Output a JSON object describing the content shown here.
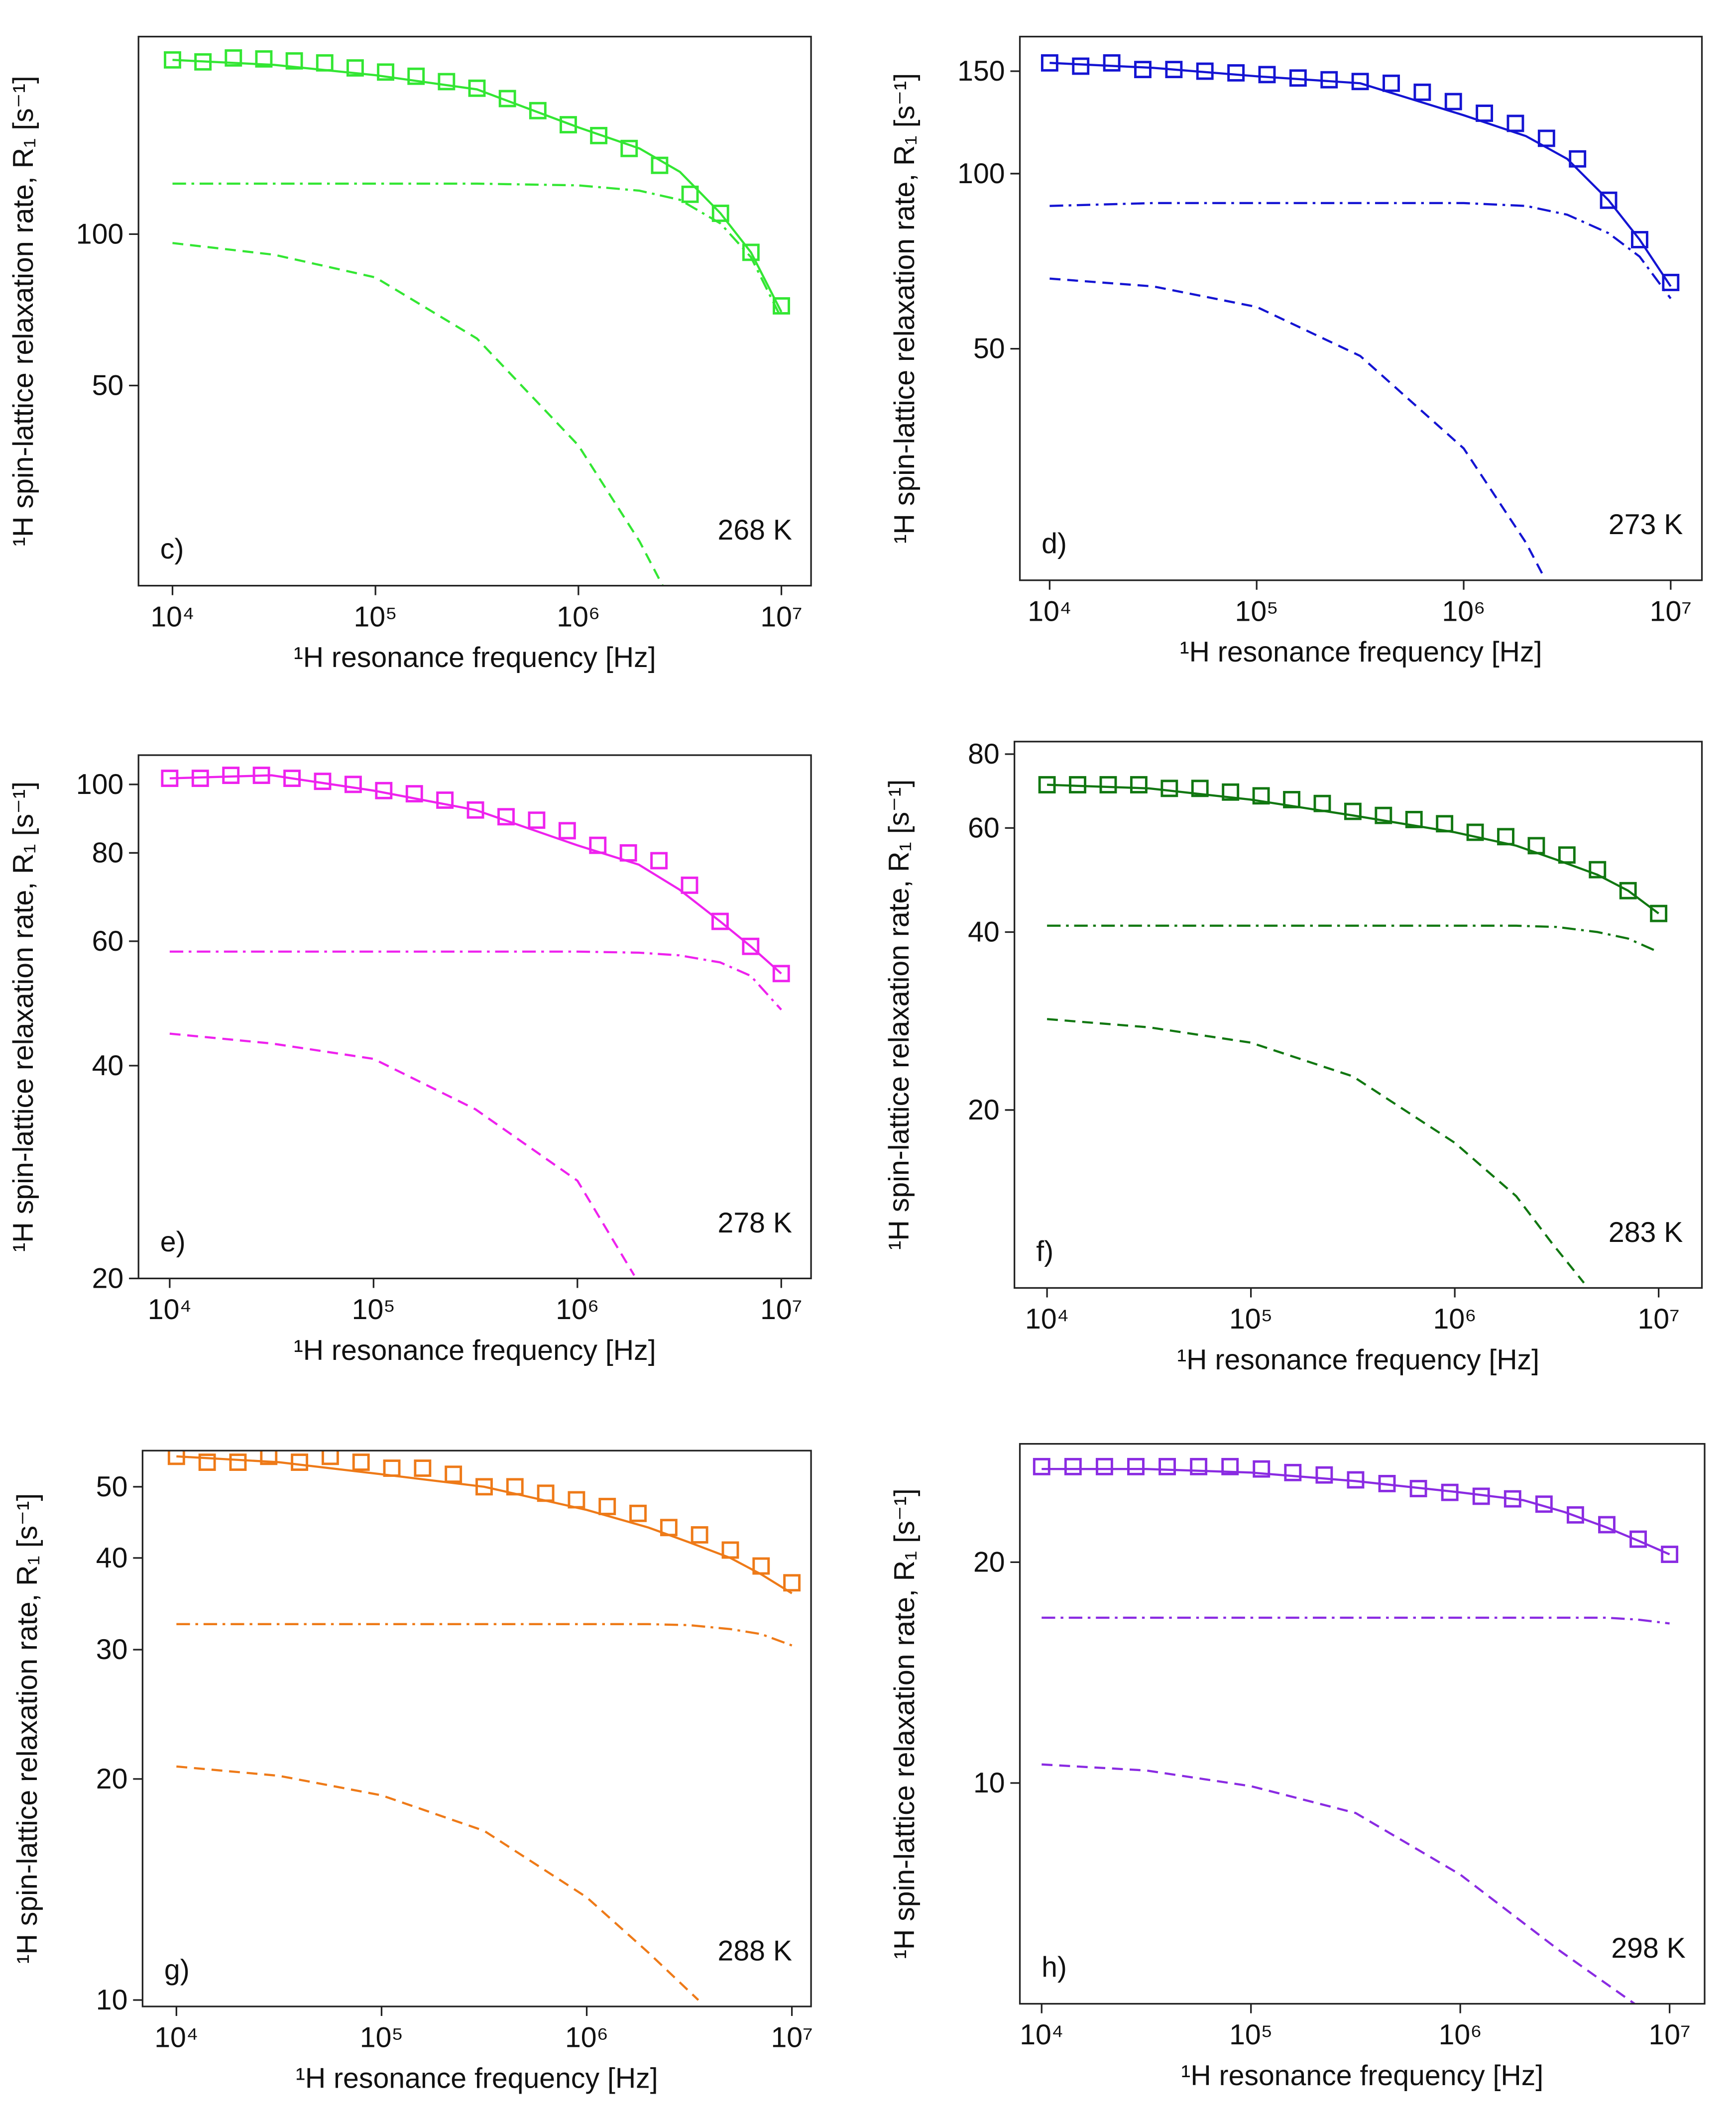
{
  "chart_data": [
    {
      "type": "line",
      "panel_label": "c)",
      "annotation": "268 K",
      "xlabel": "¹H resonance frequency [Hz]",
      "ylabel": "¹H spin-lattice relaxation rate, R₁ [s⁻¹]",
      "xscale": "log",
      "yscale": "log",
      "xlim": [
        6800,
        14000000
      ],
      "ylim": [
        20,
        247
      ],
      "xticks": [
        {
          "value": 10000,
          "label": "10⁴"
        },
        {
          "value": 100000,
          "label": "10⁵"
        },
        {
          "value": 1000000,
          "label": "10⁶"
        },
        {
          "value": 10000000,
          "label": "10⁷"
        }
      ],
      "yticks": [
        50,
        100
      ],
      "series": [
        {
          "color": "#33e633",
          "marker": "square",
          "x": [
            10000,
            14125,
            19953,
            28184,
            39811,
            56234,
            79433,
            112202,
            158489,
            223872,
            316228,
            446684,
            630957,
            891251,
            1258925,
            1778279,
            2511886,
            3548134,
            5011872,
            7079458,
            10000000
          ],
          "values": [
            222,
            220,
            224,
            223,
            221,
            219,
            214,
            210,
            206,
            201,
            195,
            186,
            176,
            165,
            157,
            148,
            137,
            120,
            110,
            92,
            72
          ]
        },
        {
          "color": "#33e633",
          "line": "solid",
          "x": [
            10000,
            31623,
            100000,
            316228,
            1000000,
            2000000,
            3162278,
            5011872,
            7079458,
            10000000
          ],
          "values": [
            222,
            217,
            207,
            194,
            163,
            148,
            133,
            110,
            92,
            70
          ]
        },
        {
          "color": "#33e633",
          "line": "dashdot",
          "x": [
            10000,
            31623,
            100000,
            316228,
            1000000,
            2000000,
            3162278,
            5011872,
            7079458,
            10000000
          ],
          "values": [
            126,
            126,
            126,
            126,
            125,
            122,
            117,
            105,
            90,
            68
          ]
        },
        {
          "color": "#33e633",
          "line": "dashed",
          "x": [
            10000,
            31623,
            100000,
            316228,
            1000000,
            2000000,
            2600000
          ],
          "values": [
            96,
            91,
            82,
            62,
            38,
            24.5,
            20
          ]
        }
      ]
    },
    {
      "type": "line",
      "panel_label": "d)",
      "annotation": "273 K",
      "xlabel": "¹H resonance frequency [Hz]",
      "ylabel": "¹H spin-lattice relaxation rate, R₁ [s⁻¹]",
      "xscale": "log",
      "yscale": "log",
      "xlim": [
        7180,
        14150000
      ],
      "ylim": [
        20,
        172
      ],
      "xticks": [
        {
          "value": 10000,
          "label": "10⁴"
        },
        {
          "value": 100000,
          "label": "10⁵"
        },
        {
          "value": 1000000,
          "label": "10⁶"
        },
        {
          "value": 10000000,
          "label": "10⁷"
        }
      ],
      "yticks": [
        50,
        100,
        150
      ],
      "series": [
        {
          "color": "#1414d2",
          "marker": "square",
          "x": [
            10000,
            14125,
            19953,
            28184,
            39811,
            56234,
            79433,
            112202,
            158489,
            223872,
            316228,
            446684,
            630957,
            891251,
            1258925,
            1778279,
            2511886,
            3548134,
            5011872,
            7079458,
            10000000
          ],
          "values": [
            155,
            153,
            155,
            151,
            151,
            150,
            149,
            148,
            146,
            145,
            144,
            143,
            138,
            133,
            127,
            122,
            115,
            106,
            90,
            77,
            65
          ]
        },
        {
          "color": "#1414d2",
          "line": "solid",
          "x": [
            10000,
            31623,
            100000,
            316228,
            1000000,
            2000000,
            3162278,
            5011872,
            7079458,
            10000000
          ],
          "values": [
            155,
            152,
            147,
            143,
            126,
            116,
            106,
            90,
            77,
            64
          ]
        },
        {
          "color": "#1414d2",
          "line": "dashdot",
          "x": [
            10000,
            31623,
            100000,
            316228,
            1000000,
            2000000,
            3162278,
            5011872,
            7079458,
            10000000
          ],
          "values": [
            88,
            89,
            89,
            89,
            89,
            88,
            85,
            79,
            72,
            61
          ]
        },
        {
          "color": "#1414d2",
          "line": "dashed",
          "x": [
            10000,
            31623,
            100000,
            316228,
            1000000,
            2000000,
            2400000
          ],
          "values": [
            66,
            64,
            59,
            48.6,
            33.7,
            23.2,
            20.5
          ]
        }
      ]
    },
    {
      "type": "line",
      "panel_label": "e)",
      "annotation": "278 K",
      "xlabel": "¹H resonance frequency [Hz]",
      "ylabel": "¹H spin-lattice relaxation rate, R₁ [s⁻¹]",
      "xscale": "log",
      "yscale": "log",
      "xlim": [
        7030,
        14000000
      ],
      "ylim": [
        20,
        110
      ],
      "xticks": [
        {
          "value": 10000,
          "label": "10⁴"
        },
        {
          "value": 100000,
          "label": "10⁵"
        },
        {
          "value": 1000000,
          "label": "10⁶"
        },
        {
          "value": 10000000,
          "label": "10⁷"
        }
      ],
      "yticks": [
        20,
        40,
        60,
        80,
        100
      ],
      "series": [
        {
          "color": "#ee22ee",
          "marker": "square",
          "x": [
            10000,
            14125,
            19953,
            28184,
            39811,
            56234,
            79433,
            112202,
            158489,
            223872,
            316228,
            446684,
            630957,
            891251,
            1258925,
            1778279,
            2511886,
            3548134,
            5011872,
            7079458,
            10000000
          ],
          "values": [
            102,
            102,
            103,
            103,
            102,
            101,
            100,
            98,
            97,
            95,
            92,
            90,
            89,
            86,
            82,
            80,
            78,
            72,
            64,
            59,
            54
          ]
        },
        {
          "color": "#ee22ee",
          "line": "solid",
          "x": [
            10000,
            31623,
            100000,
            316228,
            1000000,
            2000000,
            3162278,
            5011872,
            7079458,
            10000000
          ],
          "values": [
            102,
            103,
            98,
            92,
            82,
            77,
            71,
            64,
            59,
            54
          ]
        },
        {
          "color": "#ee22ee",
          "line": "dashdot",
          "x": [
            10000,
            31623,
            100000,
            316228,
            1000000,
            2000000,
            3162278,
            5011872,
            7079458,
            10000000
          ],
          "values": [
            58,
            58,
            58,
            58,
            58,
            57.8,
            57.3,
            56,
            53.6,
            48
          ]
        },
        {
          "color": "#ee22ee",
          "line": "dashed",
          "x": [
            10000,
            31623,
            100000,
            316228,
            1000000,
            1900000
          ],
          "values": [
            44.4,
            43,
            40.9,
            34.7,
            27.5,
            20.2
          ]
        }
      ]
    },
    {
      "type": "line",
      "panel_label": "f)",
      "annotation": "283 K",
      "xlabel": "¹H resonance frequency [Hz]",
      "ylabel": "¹H spin-lattice relaxation rate, R₁ [s⁻¹]",
      "xscale": "log",
      "yscale": "log",
      "xlim": [
        6920,
        16300000
      ],
      "ylim": [
        10,
        84
      ],
      "xticks": [
        {
          "value": 10000,
          "label": "10⁴"
        },
        {
          "value": 100000,
          "label": "10⁵"
        },
        {
          "value": 1000000,
          "label": "10⁶"
        },
        {
          "value": 10000000,
          "label": "10⁷"
        }
      ],
      "yticks": [
        20,
        40,
        60,
        80
      ],
      "series": [
        {
          "color": "#117711",
          "marker": "square",
          "x": [
            10000,
            14125,
            19953,
            28184,
            39811,
            56234,
            79433,
            112202,
            158489,
            223872,
            316228,
            446684,
            630957,
            891251,
            1258925,
            1778279,
            2511886,
            3548134,
            5011872,
            7079458,
            10000000
          ],
          "values": [
            71,
            71,
            71,
            71,
            70,
            70,
            69,
            68,
            67,
            66,
            64,
            63,
            62,
            61,
            59,
            58,
            56,
            54,
            51,
            47,
            43
          ]
        },
        {
          "color": "#117711",
          "line": "solid",
          "x": [
            10000,
            31623,
            100000,
            316228,
            1000000,
            2000000,
            3162278,
            5011872,
            7079458,
            10000000
          ],
          "values": [
            71,
            70,
            67,
            63,
            59,
            56,
            53,
            50,
            47,
            43
          ]
        },
        {
          "color": "#117711",
          "line": "dashdot",
          "x": [
            10000,
            31623,
            100000,
            316228,
            1000000,
            2000000,
            3162278,
            5011872,
            7079458,
            10000000
          ],
          "values": [
            41,
            41,
            41,
            41,
            41,
            41,
            40.8,
            40,
            39,
            37
          ]
        },
        {
          "color": "#117711",
          "line": "dashed",
          "x": [
            10000,
            31623,
            100000,
            316228,
            1000000,
            2000000,
            3000000,
            4300000
          ],
          "values": [
            28.5,
            27.6,
            26,
            22.8,
            17.6,
            14.3,
            11.9,
            10.2
          ]
        }
      ]
    },
    {
      "type": "line",
      "panel_label": "g)",
      "annotation": "288 K",
      "xlabel": "¹H resonance frequency [Hz]",
      "ylabel": "¹H spin-lattice relaxation rate, R₁ [s⁻¹]",
      "xscale": "log",
      "yscale": "log",
      "xlim": [
        6840,
        12400000
      ],
      "ylim": [
        9.8,
        56
      ],
      "xticks": [
        {
          "value": 10000,
          "label": "10⁴"
        },
        {
          "value": 100000,
          "label": "10⁵"
        },
        {
          "value": 1000000,
          "label": "10⁶"
        },
        {
          "value": 10000000,
          "label": "10⁷"
        }
      ],
      "yticks": [
        10,
        20,
        30,
        40,
        50
      ],
      "series": [
        {
          "color": "#ee7a18",
          "marker": "square",
          "x": [
            10000,
            14125,
            19953,
            28184,
            39811,
            56234,
            79433,
            112202,
            158489,
            223872,
            316228,
            446684,
            630957,
            891251,
            1258925,
            1778279,
            2511886,
            3548134,
            5011872,
            7079458,
            10000000
          ],
          "values": [
            55,
            54,
            54,
            55,
            54,
            55,
            54,
            53,
            53,
            52,
            50,
            50,
            49,
            48,
            47,
            46,
            44,
            43,
            41,
            39,
            37
          ]
        },
        {
          "color": "#ee7a18",
          "line": "solid",
          "x": [
            10000,
            31623,
            100000,
            316228,
            1000000,
            2000000,
            3162278,
            5011872,
            7079458,
            10000000
          ],
          "values": [
            55,
            54,
            52,
            50,
            46.5,
            44,
            42,
            40,
            38,
            35.8
          ]
        },
        {
          "color": "#ee7a18",
          "line": "dashdot",
          "x": [
            10000,
            31623,
            100000,
            316228,
            1000000,
            2000000,
            3162278,
            5011872,
            7079458,
            10000000
          ],
          "values": [
            32.5,
            32.5,
            32.5,
            32.5,
            32.5,
            32.5,
            32.4,
            32,
            31.5,
            30.4
          ]
        },
        {
          "color": "#ee7a18",
          "line": "dashed",
          "x": [
            10000,
            31623,
            100000,
            316228,
            1000000,
            2000000,
            3500000
          ],
          "values": [
            20.8,
            20.2,
            19,
            17,
            13.8,
            11.6,
            10
          ]
        }
      ]
    },
    {
      "type": "line",
      "panel_label": "h)",
      "annotation": "298 K",
      "xlabel": "¹H resonance frequency [Hz]",
      "ylabel": "¹H spin-lattice relaxation rate, R₁ [s⁻¹]",
      "xscale": "log",
      "yscale": "log",
      "xlim": [
        7870,
        14700000
      ],
      "ylim": [
        5,
        29
      ],
      "xticks": [
        {
          "value": 10000,
          "label": "10⁴"
        },
        {
          "value": 100000,
          "label": "10⁵"
        },
        {
          "value": 1000000,
          "label": "10⁶"
        },
        {
          "value": 10000000,
          "label": "10⁷"
        }
      ],
      "yticks": [
        10,
        20
      ],
      "series": [
        {
          "color": "#8a2be2",
          "marker": "square",
          "x": [
            10000,
            14125,
            19953,
            28184,
            39811,
            56234,
            79433,
            112202,
            158489,
            223872,
            316228,
            446684,
            630957,
            891251,
            1258925,
            1778279,
            2511886,
            3548134,
            5011872,
            7079458,
            10000000
          ],
          "values": [
            27,
            27,
            27,
            27,
            27,
            27,
            27,
            26.8,
            26.5,
            26.3,
            25.9,
            25.6,
            25.2,
            24.9,
            24.6,
            24.4,
            24,
            23.2,
            22.5,
            21.5,
            20.5
          ]
        },
        {
          "color": "#8a2be2",
          "line": "solid",
          "x": [
            10000,
            31623,
            100000,
            316228,
            1000000,
            2000000,
            3162278,
            5011872,
            7079458,
            10000000
          ],
          "values": [
            26.8,
            26.8,
            26.5,
            25.8,
            24.9,
            24.3,
            23.4,
            22.3,
            21.4,
            20.5
          ]
        },
        {
          "color": "#8a2be2",
          "line": "dashdot",
          "x": [
            10000,
            31623,
            100000,
            316228,
            1000000,
            2000000,
            3162278,
            5011872,
            7079458,
            10000000
          ],
          "values": [
            16.8,
            16.8,
            16.8,
            16.8,
            16.8,
            16.8,
            16.8,
            16.8,
            16.7,
            16.5
          ]
        },
        {
          "color": "#8a2be2",
          "line": "dashed",
          "x": [
            10000,
            31623,
            100000,
            316228,
            1000000,
            3000000,
            6800000
          ],
          "values": [
            10.6,
            10.4,
            9.9,
            9.1,
            7.5,
            5.9,
            5.0
          ]
        }
      ]
    }
  ]
}
